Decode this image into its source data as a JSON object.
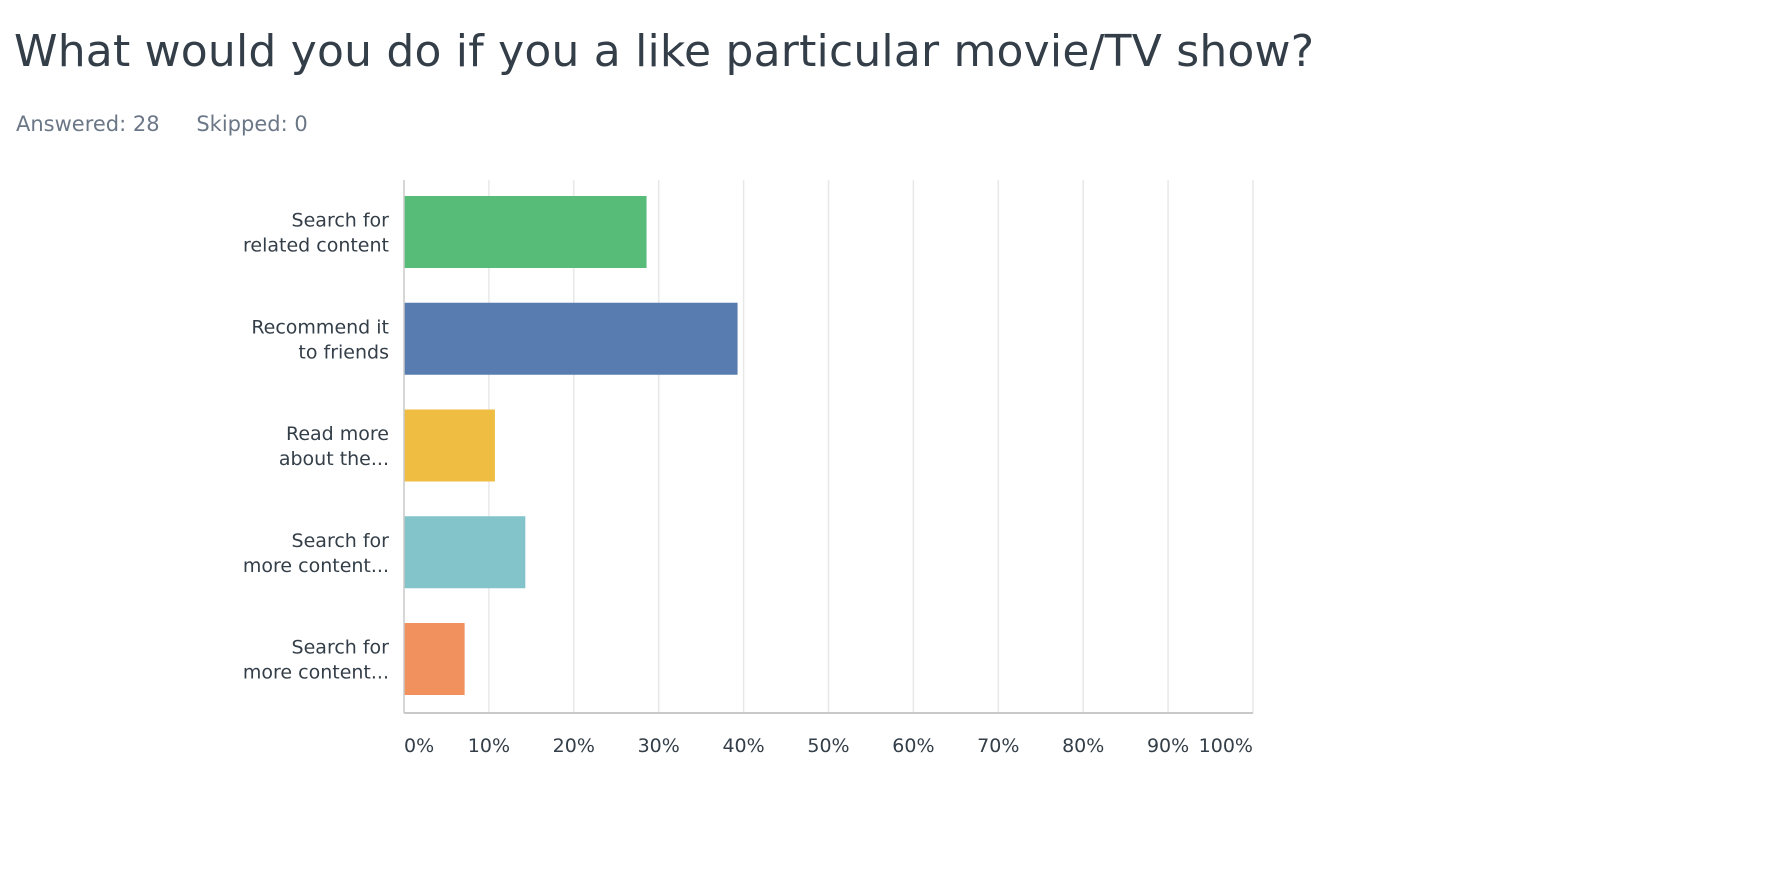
{
  "question": {
    "title": "What would you do if you a like particular movie/TV show?"
  },
  "stats": {
    "answered_label": "Answered:",
    "answered_value": "28",
    "skipped_label": "Skipped:",
    "skipped_value": "0"
  },
  "chart_data": {
    "type": "bar",
    "orientation": "horizontal",
    "title": "",
    "xlabel": "",
    "ylabel": "",
    "categories": [
      [
        "Search for",
        "related content"
      ],
      [
        "Recommend it",
        "to friends"
      ],
      [
        "Read more",
        "about the..."
      ],
      [
        "Search for",
        "more content..."
      ],
      [
        "Search for",
        "more content..."
      ]
    ],
    "values": [
      28.57,
      39.29,
      10.71,
      14.29,
      7.14
    ],
    "colors": [
      "#57bc78",
      "#587bb0",
      "#efbd42",
      "#82c4ca",
      "#f1915e"
    ],
    "xlim": [
      0,
      100
    ],
    "xticks": [
      0,
      10,
      20,
      30,
      40,
      50,
      60,
      70,
      80,
      90,
      100
    ],
    "xtick_labels": [
      "0%",
      "10%",
      "20%",
      "30%",
      "40%",
      "50%",
      "60%",
      "70%",
      "80%",
      "90%",
      "100%"
    ],
    "grid": true,
    "legend": "none"
  }
}
